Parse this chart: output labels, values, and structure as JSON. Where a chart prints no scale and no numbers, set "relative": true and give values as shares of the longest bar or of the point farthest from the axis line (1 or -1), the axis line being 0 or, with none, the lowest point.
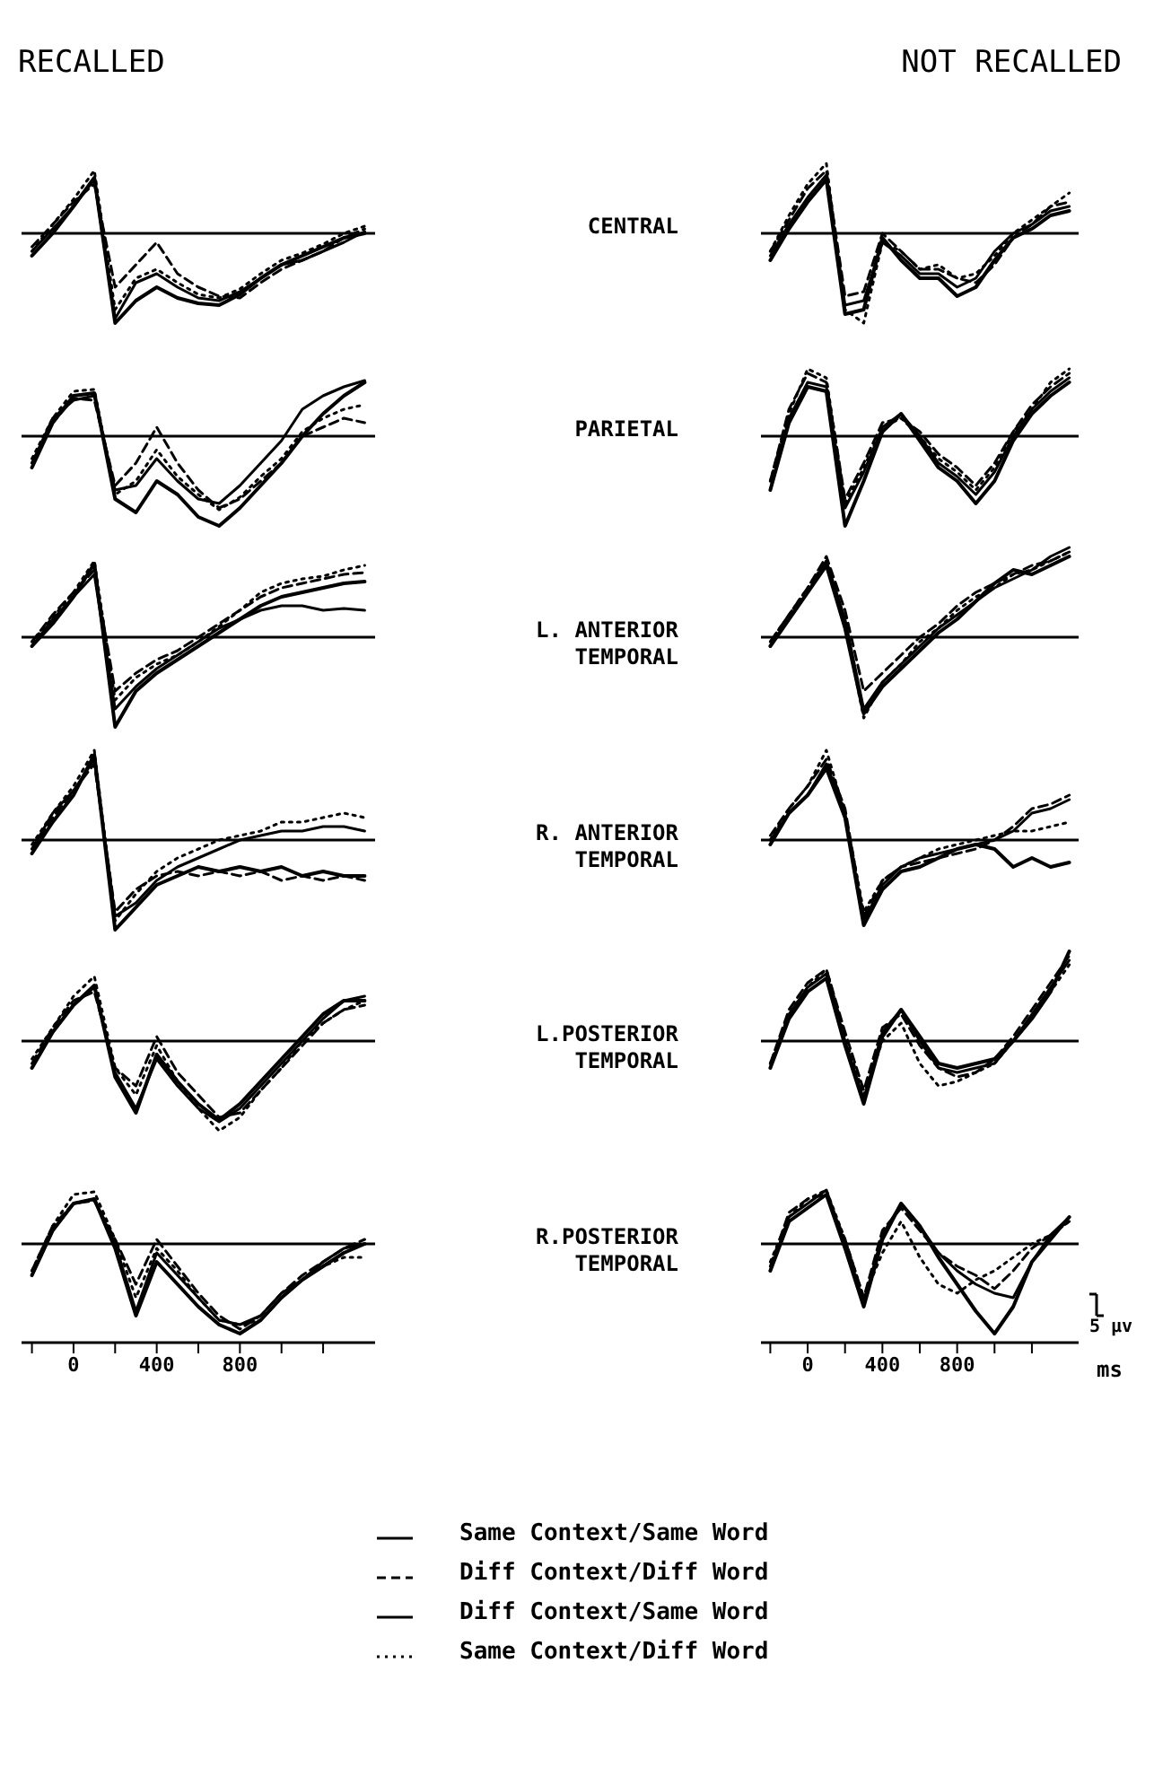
{
  "chart_data": [
    {
      "type": "line",
      "title": "RECALLED",
      "relative": true,
      "tick_labels": false,
      "xlim": [
        -250,
        1450
      ],
      "x": [
        -200,
        -100,
        0,
        100,
        200,
        300,
        400,
        500,
        600,
        700,
        800,
        900,
        1000,
        1100,
        1200,
        1300,
        1400
      ],
      "series": [
        {
          "color": "#000000",
          "line_style": "solid",
          "values": [
            -0.2,
            0.05,
            0.3,
            0.6,
            -0.95,
            -0.55,
            -0.45,
            -0.6,
            -0.72,
            -0.75,
            -0.65,
            -0.5,
            -0.35,
            -0.3,
            -0.2,
            -0.1,
            0.02
          ]
        },
        {
          "color": "#000000",
          "line_style": "dashed",
          "values": [
            -0.15,
            0.1,
            0.35,
            0.55,
            -0.6,
            -0.35,
            -0.1,
            -0.45,
            -0.6,
            -0.7,
            -0.72,
            -0.55,
            -0.4,
            -0.3,
            -0.2,
            -0.05,
            0.05
          ]
        },
        {
          "color": "#000000",
          "line_style": "solid",
          "values": [
            -0.25,
            0.0,
            0.3,
            0.62,
            -1,
            -0.75,
            -0.6,
            -0.72,
            -0.78,
            -0.8,
            -0.68,
            -0.5,
            -0.35,
            -0.25,
            -0.15,
            -0.05,
            0.0
          ]
        },
        {
          "color": "#000000",
          "line_style": "dotted",
          "values": [
            -0.2,
            0.1,
            0.38,
            0.7,
            -0.85,
            -0.5,
            -0.4,
            -0.55,
            -0.68,
            -0.72,
            -0.62,
            -0.45,
            -0.3,
            -0.22,
            -0.12,
            0.0,
            0.08
          ]
        }
      ]
    },
    {
      "type": "line",
      "title": "NOT RECALLED",
      "subtitle": "CENTRAL",
      "relative": true,
      "tick_labels": false,
      "xlim": [
        -250,
        1450
      ],
      "x": [
        -200,
        -100,
        0,
        100,
        200,
        300,
        400,
        500,
        600,
        700,
        800,
        900,
        1000,
        1100,
        1200,
        1300,
        1400
      ],
      "series": [
        {
          "color": "#000000",
          "line_style": "solid",
          "values": [
            -0.25,
            0.1,
            0.4,
            0.65,
            -0.8,
            -0.75,
            -0.1,
            -0.25,
            -0.45,
            -0.45,
            -0.6,
            -0.5,
            -0.2,
            0.0,
            0.1,
            0.25,
            0.3
          ]
        },
        {
          "color": "#000000",
          "line_style": "dashed",
          "values": [
            -0.2,
            0.15,
            0.5,
            0.7,
            -0.7,
            -0.65,
            0.0,
            -0.2,
            -0.4,
            -0.4,
            -0.5,
            -0.55,
            -0.35,
            -0.05,
            0.1,
            0.3,
            0.35
          ]
        },
        {
          "color": "#000000",
          "line_style": "solid",
          "values": [
            -0.3,
            0.05,
            0.35,
            0.6,
            -0.9,
            -0.85,
            -0.05,
            -0.3,
            -0.5,
            -0.5,
            -0.7,
            -0.6,
            -0.3,
            -0.05,
            0.05,
            0.2,
            0.25
          ]
        },
        {
          "color": "#000000",
          "line_style": "dotted",
          "values": [
            -0.2,
            0.2,
            0.55,
            0.78,
            -0.85,
            -1,
            -0.1,
            -0.2,
            -0.4,
            -0.35,
            -0.5,
            -0.45,
            -0.25,
            0.0,
            0.15,
            0.3,
            0.45
          ]
        }
      ]
    },
    {
      "type": "line",
      "relative": true,
      "tick_labels": false,
      "xlim": [
        -250,
        1450
      ],
      "x": [
        -200,
        -100,
        0,
        100,
        200,
        300,
        400,
        500,
        600,
        700,
        800,
        900,
        1000,
        1100,
        1200,
        1300,
        1400
      ],
      "series": [
        {
          "color": "#000000",
          "line_style": "solid",
          "values": [
            -0.3,
            0.2,
            0.4,
            0.45,
            -0.6,
            -0.55,
            -0.25,
            -0.5,
            -0.7,
            -0.75,
            -0.55,
            -0.3,
            -0.05,
            0.3,
            0.45,
            0.55,
            0.62
          ]
        },
        {
          "color": "#000000",
          "line_style": "dashed",
          "values": [
            -0.3,
            0.15,
            0.42,
            0.4,
            -0.55,
            -0.3,
            0.1,
            -0.3,
            -0.6,
            -0.8,
            -0.7,
            -0.5,
            -0.3,
            0.0,
            0.1,
            0.2,
            0.15
          ]
        },
        {
          "color": "#000000",
          "line_style": "solid",
          "values": [
            -0.35,
            0.15,
            0.45,
            0.48,
            -0.7,
            -0.85,
            -0.5,
            -0.65,
            -0.9,
            -1,
            -0.8,
            -0.55,
            -0.3,
            0.0,
            0.25,
            0.45,
            0.6
          ]
        },
        {
          "color": "#000000",
          "line_style": "dotted",
          "values": [
            -0.25,
            0.2,
            0.5,
            0.52,
            -0.65,
            -0.5,
            -0.15,
            -0.45,
            -0.65,
            -0.82,
            -0.68,
            -0.45,
            -0.25,
            0.05,
            0.2,
            0.3,
            0.35
          ]
        }
      ]
    },
    {
      "type": "line",
      "subtitle": "PARIETAL",
      "relative": true,
      "tick_labels": false,
      "xlim": [
        -250,
        1450
      ],
      "x": [
        -200,
        -100,
        0,
        100,
        200,
        300,
        400,
        500,
        600,
        700,
        800,
        900,
        1000,
        1100,
        1200,
        1300,
        1400
      ],
      "series": [
        {
          "color": "#000000",
          "line_style": "solid",
          "values": [
            -0.6,
            0.2,
            0.6,
            0.55,
            -0.8,
            -0.4,
            0.1,
            0.25,
            0.0,
            -0.3,
            -0.45,
            -0.65,
            -0.4,
            0.0,
            0.3,
            0.5,
            0.65
          ]
        },
        {
          "color": "#000000",
          "line_style": "dashed",
          "values": [
            -0.5,
            0.3,
            0.7,
            0.6,
            -0.7,
            -0.3,
            0.15,
            0.2,
            0.05,
            -0.2,
            -0.35,
            -0.55,
            -0.3,
            0.05,
            0.35,
            0.55,
            0.7
          ]
        },
        {
          "color": "#000000",
          "line_style": "solid",
          "values": [
            -0.6,
            0.15,
            0.55,
            0.5,
            -1,
            -0.5,
            0.05,
            0.25,
            -0.05,
            -0.35,
            -0.5,
            -0.75,
            -0.5,
            -0.05,
            0.25,
            0.45,
            0.6
          ]
        },
        {
          "color": "#000000",
          "line_style": "dotted",
          "values": [
            -0.5,
            0.25,
            0.75,
            0.65,
            -0.75,
            -0.35,
            0.1,
            0.2,
            0.0,
            -0.25,
            -0.4,
            -0.6,
            -0.35,
            0.05,
            0.3,
            0.6,
            0.75
          ]
        }
      ]
    },
    {
      "type": "line",
      "relative": true,
      "tick_labels": false,
      "xlim": [
        -250,
        1450
      ],
      "x": [
        -200,
        -100,
        0,
        100,
        200,
        300,
        400,
        500,
        600,
        700,
        800,
        900,
        1000,
        1100,
        1200,
        1300,
        1400
      ],
      "series": [
        {
          "color": "#000000",
          "line_style": "solid",
          "values": [
            -0.1,
            0.2,
            0.45,
            0.7,
            -0.8,
            -0.55,
            -0.35,
            -0.2,
            -0.05,
            0.1,
            0.2,
            0.3,
            0.35,
            0.35,
            0.3,
            0.32,
            0.3
          ]
        },
        {
          "color": "#000000",
          "line_style": "dashed",
          "values": [
            -0.05,
            0.25,
            0.5,
            0.75,
            -0.6,
            -0.4,
            -0.25,
            -0.15,
            0.0,
            0.15,
            0.3,
            0.45,
            0.55,
            0.6,
            0.65,
            0.7,
            0.72
          ]
        },
        {
          "color": "#000000",
          "line_style": "solid",
          "values": [
            -0.1,
            0.15,
            0.45,
            0.82,
            -1,
            -0.6,
            -0.4,
            -0.25,
            -0.1,
            0.05,
            0.2,
            0.35,
            0.45,
            0.5,
            0.55,
            0.6,
            0.62
          ]
        },
        {
          "color": "#000000",
          "line_style": "dotted",
          "values": [
            -0.05,
            0.22,
            0.5,
            0.85,
            -0.7,
            -0.45,
            -0.3,
            -0.2,
            -0.05,
            0.12,
            0.3,
            0.5,
            0.6,
            0.65,
            0.68,
            0.75,
            0.8
          ]
        }
      ]
    },
    {
      "type": "line",
      "subtitle": "L. ANTERIOR TEMPORAL",
      "relative": true,
      "tick_labels": false,
      "xlim": [
        -250,
        1450
      ],
      "x": [
        -200,
        -100,
        0,
        100,
        200,
        300,
        400,
        500,
        600,
        700,
        800,
        900,
        1000,
        1100,
        1200,
        1300,
        1400
      ],
      "series": [
        {
          "color": "#000000",
          "line_style": "solid",
          "values": [
            -0.1,
            0.2,
            0.5,
            0.85,
            0.2,
            -0.8,
            -0.5,
            -0.3,
            -0.1,
            0.1,
            0.25,
            0.4,
            0.55,
            0.65,
            0.75,
            0.9,
            1.0
          ]
        },
        {
          "color": "#000000",
          "line_style": "dashed",
          "values": [
            -0.05,
            0.25,
            0.55,
            0.9,
            0.3,
            -0.6,
            -0.4,
            -0.2,
            0.0,
            0.15,
            0.35,
            0.5,
            0.6,
            0.7,
            0.8,
            0.85,
            0.95
          ]
        },
        {
          "color": "#000000",
          "line_style": "solid",
          "values": [
            -0.1,
            0.2,
            0.5,
            0.8,
            0.1,
            -0.85,
            -0.55,
            -0.35,
            -0.15,
            0.05,
            0.2,
            0.4,
            0.6,
            0.75,
            0.7,
            0.8,
            0.9
          ]
        },
        {
          "color": "#000000",
          "line_style": "dotted",
          "values": [
            -0.05,
            0.25,
            0.55,
            0.85,
            0.15,
            -0.9,
            -0.5,
            -0.3,
            -0.05,
            0.1,
            0.3,
            0.45,
            0.55,
            0.7,
            0.75,
            0.85,
            0.95
          ]
        }
      ]
    },
    {
      "type": "line",
      "relative": true,
      "tick_labels": false,
      "xlim": [
        -250,
        1450
      ],
      "x": [
        -200,
        -100,
        0,
        100,
        200,
        300,
        400,
        500,
        600,
        700,
        800,
        900,
        1000,
        1100,
        1200,
        1300,
        1400
      ],
      "series": [
        {
          "color": "#000000",
          "line_style": "solid",
          "values": [
            -0.1,
            0.3,
            0.55,
            0.9,
            -0.85,
            -0.7,
            -0.45,
            -0.3,
            -0.2,
            -0.1,
            0.0,
            0.05,
            0.1,
            0.1,
            0.15,
            0.15,
            0.1
          ]
        },
        {
          "color": "#000000",
          "line_style": "dashed",
          "values": [
            -0.1,
            0.25,
            0.55,
            0.85,
            -0.8,
            -0.55,
            -0.4,
            -0.35,
            -0.4,
            -0.35,
            -0.4,
            -0.35,
            -0.45,
            -0.4,
            -0.45,
            -0.4,
            -0.45
          ]
        },
        {
          "color": "#000000",
          "line_style": "solid",
          "values": [
            -0.15,
            0.2,
            0.5,
            0.95,
            -1,
            -0.75,
            -0.5,
            -0.4,
            -0.3,
            -0.35,
            -0.3,
            -0.35,
            -0.3,
            -0.4,
            -0.35,
            -0.4,
            -0.4
          ]
        },
        {
          "color": "#000000",
          "line_style": "dotted",
          "values": [
            -0.05,
            0.3,
            0.6,
            1,
            -0.9,
            -0.6,
            -0.35,
            -0.2,
            -0.1,
            0.0,
            0.05,
            0.1,
            0.2,
            0.2,
            0.25,
            0.3,
            0.25
          ]
        }
      ]
    },
    {
      "type": "line",
      "subtitle": "R. ANTERIOR TEMPORAL",
      "relative": true,
      "tick_labels": false,
      "xlim": [
        -250,
        1450
      ],
      "x": [
        -200,
        -100,
        0,
        100,
        200,
        300,
        400,
        500,
        600,
        700,
        800,
        900,
        1000,
        1100,
        1200,
        1300,
        1400
      ],
      "series": [
        {
          "color": "#000000",
          "line_style": "solid",
          "values": [
            0.0,
            0.3,
            0.5,
            0.85,
            0.3,
            -0.9,
            -0.5,
            -0.3,
            -0.2,
            -0.15,
            -0.1,
            -0.05,
            0.0,
            0.1,
            0.3,
            0.35,
            0.45
          ]
        },
        {
          "color": "#000000",
          "line_style": "dashed",
          "values": [
            0.05,
            0.35,
            0.6,
            0.9,
            0.35,
            -0.85,
            -0.45,
            -0.3,
            -0.25,
            -0.2,
            -0.15,
            -0.1,
            0.0,
            0.15,
            0.35,
            0.4,
            0.5
          ]
        },
        {
          "color": "#000000",
          "line_style": "solid",
          "values": [
            -0.05,
            0.3,
            0.5,
            0.8,
            0.25,
            -0.95,
            -0.55,
            -0.35,
            -0.3,
            -0.2,
            -0.1,
            -0.05,
            -0.1,
            -0.3,
            -0.2,
            -0.3,
            -0.25
          ]
        },
        {
          "color": "#000000",
          "line_style": "dotted",
          "values": [
            0.0,
            0.35,
            0.6,
            1.0,
            0.3,
            -0.8,
            -0.45,
            -0.3,
            -0.2,
            -0.1,
            -0.05,
            0.0,
            0.05,
            0.1,
            0.1,
            0.15,
            0.2
          ]
        }
      ]
    },
    {
      "type": "line",
      "relative": true,
      "tick_labels": false,
      "xlim": [
        -250,
        1450
      ],
      "x": [
        -200,
        -100,
        0,
        100,
        200,
        300,
        400,
        500,
        600,
        700,
        800,
        900,
        1000,
        1100,
        1200,
        1300,
        1400
      ],
      "series": [
        {
          "color": "#000000",
          "line_style": "solid",
          "values": [
            -0.3,
            0.1,
            0.4,
            0.6,
            -0.35,
            -0.75,
            -0.2,
            -0.5,
            -0.75,
            -0.9,
            -0.75,
            -0.5,
            -0.25,
            0.0,
            0.25,
            0.45,
            0.5
          ]
        },
        {
          "color": "#000000",
          "line_style": "dashed",
          "values": [
            -0.25,
            0.15,
            0.45,
            0.55,
            -0.3,
            -0.5,
            0.05,
            -0.35,
            -0.6,
            -0.85,
            -0.8,
            -0.55,
            -0.3,
            -0.05,
            0.2,
            0.35,
            0.4
          ]
        },
        {
          "color": "#000000",
          "line_style": "solid",
          "values": [
            -0.3,
            0.1,
            0.4,
            0.62,
            -0.4,
            -0.8,
            -0.15,
            -0.45,
            -0.7,
            -0.88,
            -0.7,
            -0.45,
            -0.2,
            0.05,
            0.3,
            0.45,
            0.45
          ]
        },
        {
          "color": "#000000",
          "line_style": "dotted",
          "values": [
            -0.2,
            0.15,
            0.5,
            0.72,
            -0.3,
            -0.6,
            -0.05,
            -0.45,
            -0.75,
            -1,
            -0.85,
            -0.55,
            -0.3,
            0.0,
            0.2,
            0.35,
            0.45
          ]
        }
      ]
    },
    {
      "type": "line",
      "subtitle": "L.POSTERIOR TEMPORAL",
      "relative": true,
      "tick_labels": false,
      "xlim": [
        -250,
        1450
      ],
      "x": [
        -200,
        -100,
        0,
        100,
        200,
        300,
        400,
        500,
        600,
        700,
        800,
        900,
        1000,
        1100,
        1200,
        1300,
        1400
      ],
      "series": [
        {
          "color": "#000000",
          "line_style": "solid",
          "values": [
            -0.3,
            0.3,
            0.6,
            0.75,
            0.0,
            -0.65,
            0.1,
            0.35,
            0.0,
            -0.3,
            -0.35,
            -0.3,
            -0.25,
            0.0,
            0.3,
            0.6,
            0.9
          ]
        },
        {
          "color": "#000000",
          "line_style": "dashed",
          "values": [
            -0.25,
            0.35,
            0.65,
            0.8,
            0.1,
            -0.55,
            0.15,
            0.3,
            -0.05,
            -0.3,
            -0.4,
            -0.35,
            -0.2,
            0.05,
            0.35,
            0.65,
            0.95
          ]
        },
        {
          "color": "#000000",
          "line_style": "solid",
          "values": [
            -0.3,
            0.25,
            0.55,
            0.7,
            -0.05,
            -0.7,
            0.05,
            0.35,
            0.05,
            -0.25,
            -0.3,
            -0.25,
            -0.2,
            0.0,
            0.25,
            0.55,
            1.0
          ]
        },
        {
          "color": "#000000",
          "line_style": "dotted",
          "values": [
            -0.25,
            0.3,
            0.6,
            0.8,
            0.05,
            -0.6,
            0.0,
            0.2,
            -0.25,
            -0.5,
            -0.45,
            -0.35,
            -0.25,
            0.0,
            0.25,
            0.55,
            0.85
          ]
        }
      ]
    },
    {
      "type": "line",
      "relative": true,
      "tick_labels": "x",
      "xlim": [
        -250,
        1450
      ],
      "xticks": [
        {
          "value": -200,
          "label": null
        },
        0,
        {
          "value": 200,
          "label": null
        },
        400,
        {
          "value": 600,
          "label": null
        },
        800,
        {
          "value": 1000,
          "label": null
        },
        {
          "value": 1200,
          "label": null
        }
      ],
      "x": [
        -200,
        -100,
        0,
        100,
        200,
        300,
        400,
        500,
        600,
        700,
        800,
        900,
        1000,
        1100,
        1200,
        1300,
        1400
      ],
      "series": [
        {
          "color": "#000000",
          "line_style": "solid",
          "values": [
            -0.35,
            0.15,
            0.45,
            0.5,
            0.0,
            -0.75,
            -0.1,
            -0.35,
            -0.6,
            -0.85,
            -0.9,
            -0.8,
            -0.55,
            -0.4,
            -0.2,
            -0.05,
            0.0
          ]
        },
        {
          "color": "#000000",
          "line_style": "dashed",
          "values": [
            -0.3,
            0.2,
            0.45,
            0.48,
            0.05,
            -0.45,
            0.05,
            -0.25,
            -0.55,
            -0.8,
            -0.95,
            -0.8,
            -0.55,
            -0.35,
            -0.2,
            -0.05,
            0.05
          ]
        },
        {
          "color": "#000000",
          "line_style": "solid",
          "values": [
            -0.35,
            0.15,
            0.45,
            0.5,
            -0.05,
            -0.8,
            -0.2,
            -0.45,
            -0.7,
            -0.9,
            -1,
            -0.85,
            -0.6,
            -0.4,
            -0.25,
            -0.1,
            0.0
          ]
        },
        {
          "color": "#000000",
          "line_style": "dotted",
          "values": [
            -0.3,
            0.2,
            0.55,
            0.58,
            0.05,
            -0.6,
            -0.05,
            -0.3,
            -0.6,
            -0.85,
            -0.9,
            -0.85,
            -0.6,
            -0.4,
            -0.25,
            -0.15,
            -0.15
          ]
        }
      ]
    },
    {
      "type": "line",
      "subtitle": "R.POSTERIOR TEMPORAL",
      "relative": true,
      "tick_labels": "x",
      "xlabel": "ms",
      "legend": "bottom",
      "annotations": [
        "5 µv"
      ],
      "xlim": [
        -250,
        1450
      ],
      "xticks": [
        {
          "value": -200,
          "label": null
        },
        0,
        {
          "value": 200,
          "label": null
        },
        400,
        {
          "value": 600,
          "label": null
        },
        800,
        {
          "value": 1000,
          "label": null
        },
        {
          "value": 1200,
          "label": null
        }
      ],
      "x": [
        -200,
        -100,
        0,
        100,
        200,
        300,
        400,
        500,
        600,
        700,
        800,
        900,
        1000,
        1100,
        1200,
        1300,
        1400
      ],
      "series": [
        {
          "name": "Same Context/Same Word",
          "color": "#000000",
          "line_style": "solid",
          "values": [
            -0.3,
            0.3,
            0.45,
            0.6,
            0.0,
            -0.65,
            0.1,
            0.45,
            0.2,
            -0.1,
            -0.3,
            -0.45,
            -0.55,
            -0.6,
            -0.2,
            0.1,
            0.3
          ]
        },
        {
          "name": "Diff Context/Diff Word",
          "color": "#000000",
          "line_style": "dashed",
          "values": [
            -0.25,
            0.35,
            0.5,
            0.55,
            0.05,
            -0.6,
            0.15,
            0.4,
            0.15,
            -0.1,
            -0.25,
            -0.35,
            -0.5,
            -0.3,
            -0.05,
            0.1,
            0.25
          ]
        },
        {
          "name": "Diff Context/Same Word",
          "color": "#000000",
          "line_style": "solid",
          "values": [
            -0.3,
            0.25,
            0.4,
            0.55,
            -0.05,
            -0.7,
            0.05,
            0.45,
            0.2,
            -0.15,
            -0.45,
            -0.75,
            -1,
            -0.7,
            -0.2,
            0.05,
            0.3
          ]
        },
        {
          "name": "Same Context/Diff Word",
          "color": "#000000",
          "line_style": "dotted",
          "values": [
            -0.2,
            0.3,
            0.5,
            0.6,
            0.05,
            -0.6,
            -0.1,
            0.25,
            -0.15,
            -0.45,
            -0.55,
            -0.4,
            -0.3,
            -0.15,
            0.0,
            0.1,
            0.25
          ]
        }
      ]
    }
  ]
}
